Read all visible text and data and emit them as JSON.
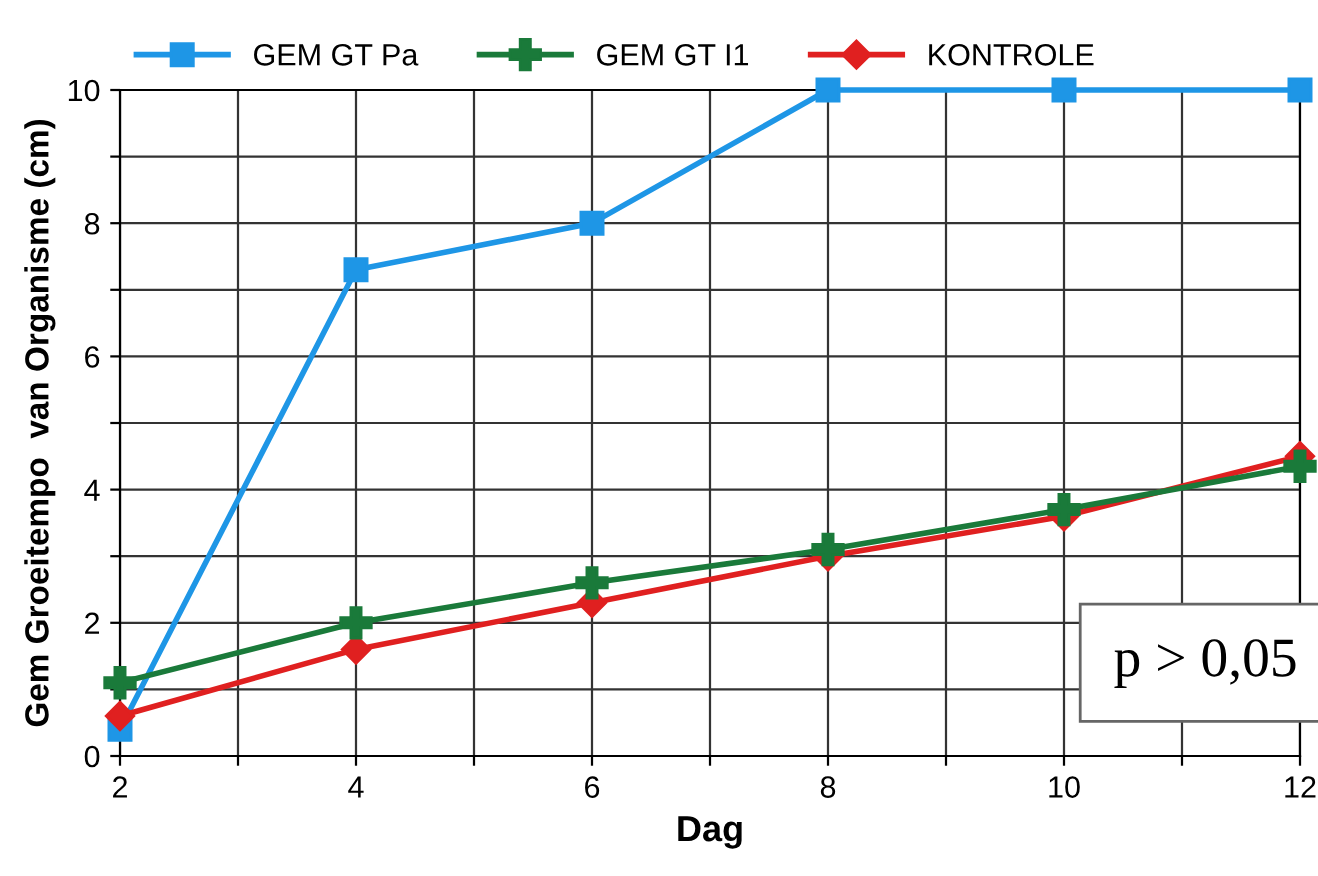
{
  "chart_data": {
    "type": "line",
    "xlabel": "Dag",
    "ylabel": "Gem Groeitempo  van Organisme (cm)",
    "x": [
      2,
      4,
      6,
      8,
      10,
      12
    ],
    "series": [
      {
        "name": "GEM GT Pa",
        "color": "#1e96e6",
        "marker": "square",
        "values": [
          0.4,
          7.3,
          8,
          10,
          10,
          10
        ]
      },
      {
        "name": "GEM GT I1",
        "color": "#1a7a3a",
        "marker": "cross",
        "values": [
          1.1,
          2.0,
          2.6,
          3.1,
          3.7,
          4.35
        ]
      },
      {
        "name": "KONTROLE",
        "color": "#e02020",
        "marker": "diamond",
        "values": [
          0.6,
          1.6,
          2.3,
          3.0,
          3.6,
          4.5
        ]
      }
    ],
    "xlim": [
      2,
      12
    ],
    "ylim": [
      0,
      10
    ],
    "xticks": [
      2,
      {
        "value": 3,
        "label": null
      },
      4,
      {
        "value": 5,
        "label": null
      },
      6,
      {
        "value": 7,
        "label": null
      },
      8,
      {
        "value": 9,
        "label": null
      },
      10,
      {
        "value": 11,
        "label": null
      },
      12
    ],
    "yticks": [
      0,
      {
        "value": 1,
        "label": null
      },
      2,
      {
        "value": 3,
        "label": null
      },
      4,
      {
        "value": 5,
        "label": null
      },
      6,
      {
        "value": 7,
        "label": null
      },
      8,
      {
        "value": 9,
        "label": null
      },
      10
    ],
    "grid": true,
    "legend": "top",
    "line_style": "solid",
    "annotations": [
      "p > 0,05"
    ]
  }
}
